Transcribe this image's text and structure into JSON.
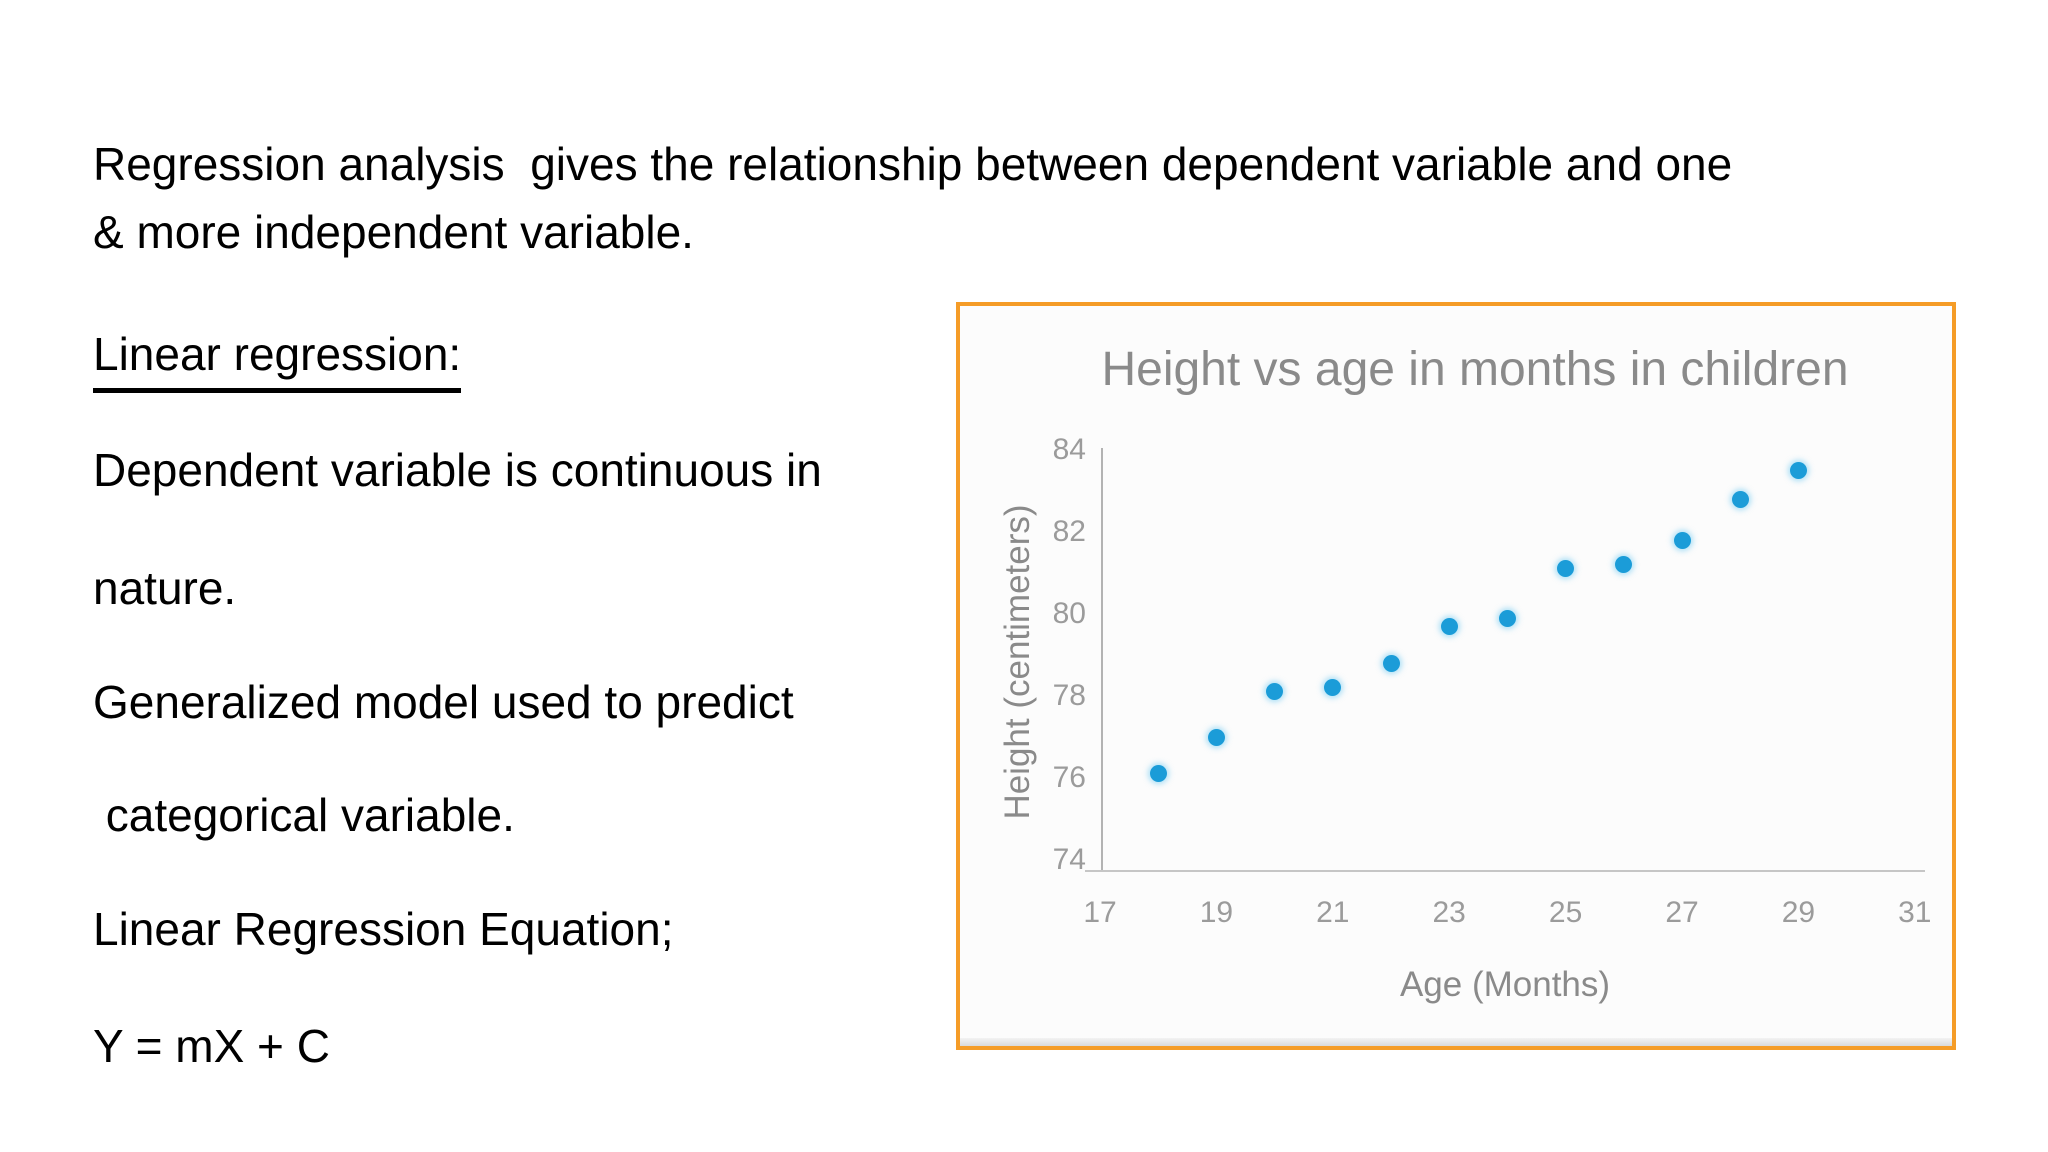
{
  "slide": {
    "line1": "Regression analysis  gives the relationship between dependent variable and one",
    "line2": "& more independent variable.",
    "heading": "Linear regression:",
    "body1": "Dependent variable is continuous in",
    "body2": "nature.",
    "body3": "Generalized model used to predict",
    "body4": " categorical variable.",
    "body5": "Linear Regression Equation;",
    "equation": "Y = mX + C",
    "text_color": "#000000",
    "background": "#ffffff"
  },
  "chart_data": {
    "type": "scatter",
    "title": "Height vs age in months in children",
    "xlabel": "Age (Months)",
    "ylabel": "Height (centimeters)",
    "x": [
      18,
      19,
      20,
      21,
      22,
      23,
      24,
      25,
      26,
      27,
      28,
      29
    ],
    "y": [
      76.1,
      77.0,
      78.1,
      78.2,
      78.8,
      79.7,
      79.9,
      81.1,
      81.2,
      81.8,
      82.8,
      83.5
    ],
    "xticks": [
      17,
      19,
      21,
      23,
      25,
      27,
      29,
      31
    ],
    "yticks": [
      74,
      76,
      78,
      80,
      82,
      84
    ],
    "xlim": [
      17,
      31
    ],
    "ylim": [
      74,
      84
    ],
    "grid": false,
    "legend": false,
    "point_color": "#1b9cd8",
    "frame_color": "#f59c27",
    "label_color": "#8a8a8a",
    "tick_color": "#9b9b9b"
  }
}
